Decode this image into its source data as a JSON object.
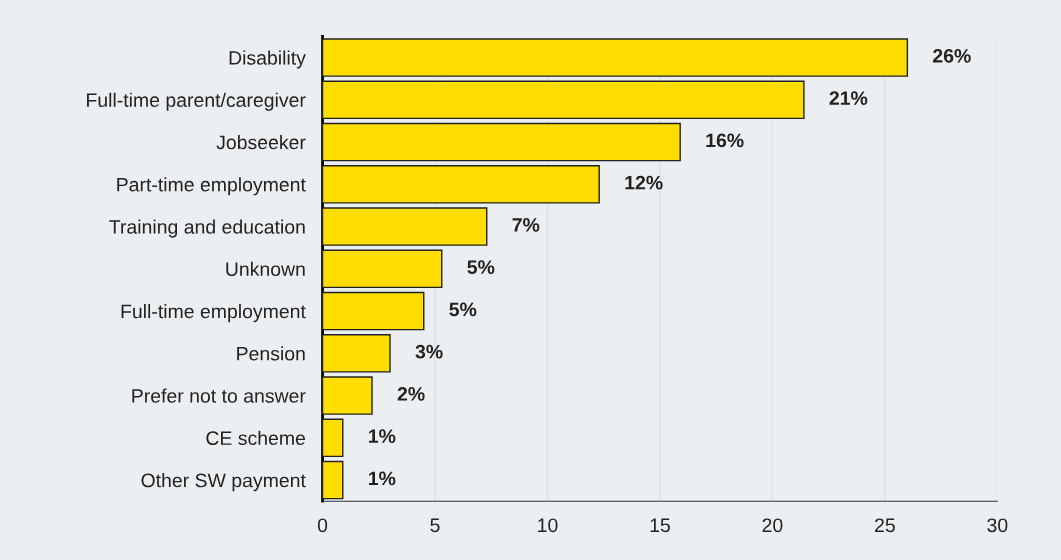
{
  "chart_data": {
    "type": "bar",
    "orientation": "horizontal",
    "categories": [
      "Disability",
      "Full-time parent/caregiver",
      "Jobseeker",
      "Part-time employment",
      "Training and education",
      "Unknown",
      "Full-time employment",
      "Pension",
      "Prefer not to answer",
      "CE scheme",
      "Other SW payment"
    ],
    "values": [
      26.0,
      21.4,
      15.9,
      12.3,
      7.3,
      5.3,
      4.5,
      3.0,
      2.2,
      0.9,
      0.9
    ],
    "value_labels": [
      "26%",
      "21%",
      "16%",
      "12%",
      "7%",
      "5%",
      "5%",
      "3%",
      "2%",
      "1%",
      "1%"
    ],
    "color": "#ffdd00",
    "xlim": [
      0,
      30
    ],
    "xticks": [
      0,
      5,
      10,
      15,
      20,
      25,
      30
    ],
    "grid": "x"
  }
}
